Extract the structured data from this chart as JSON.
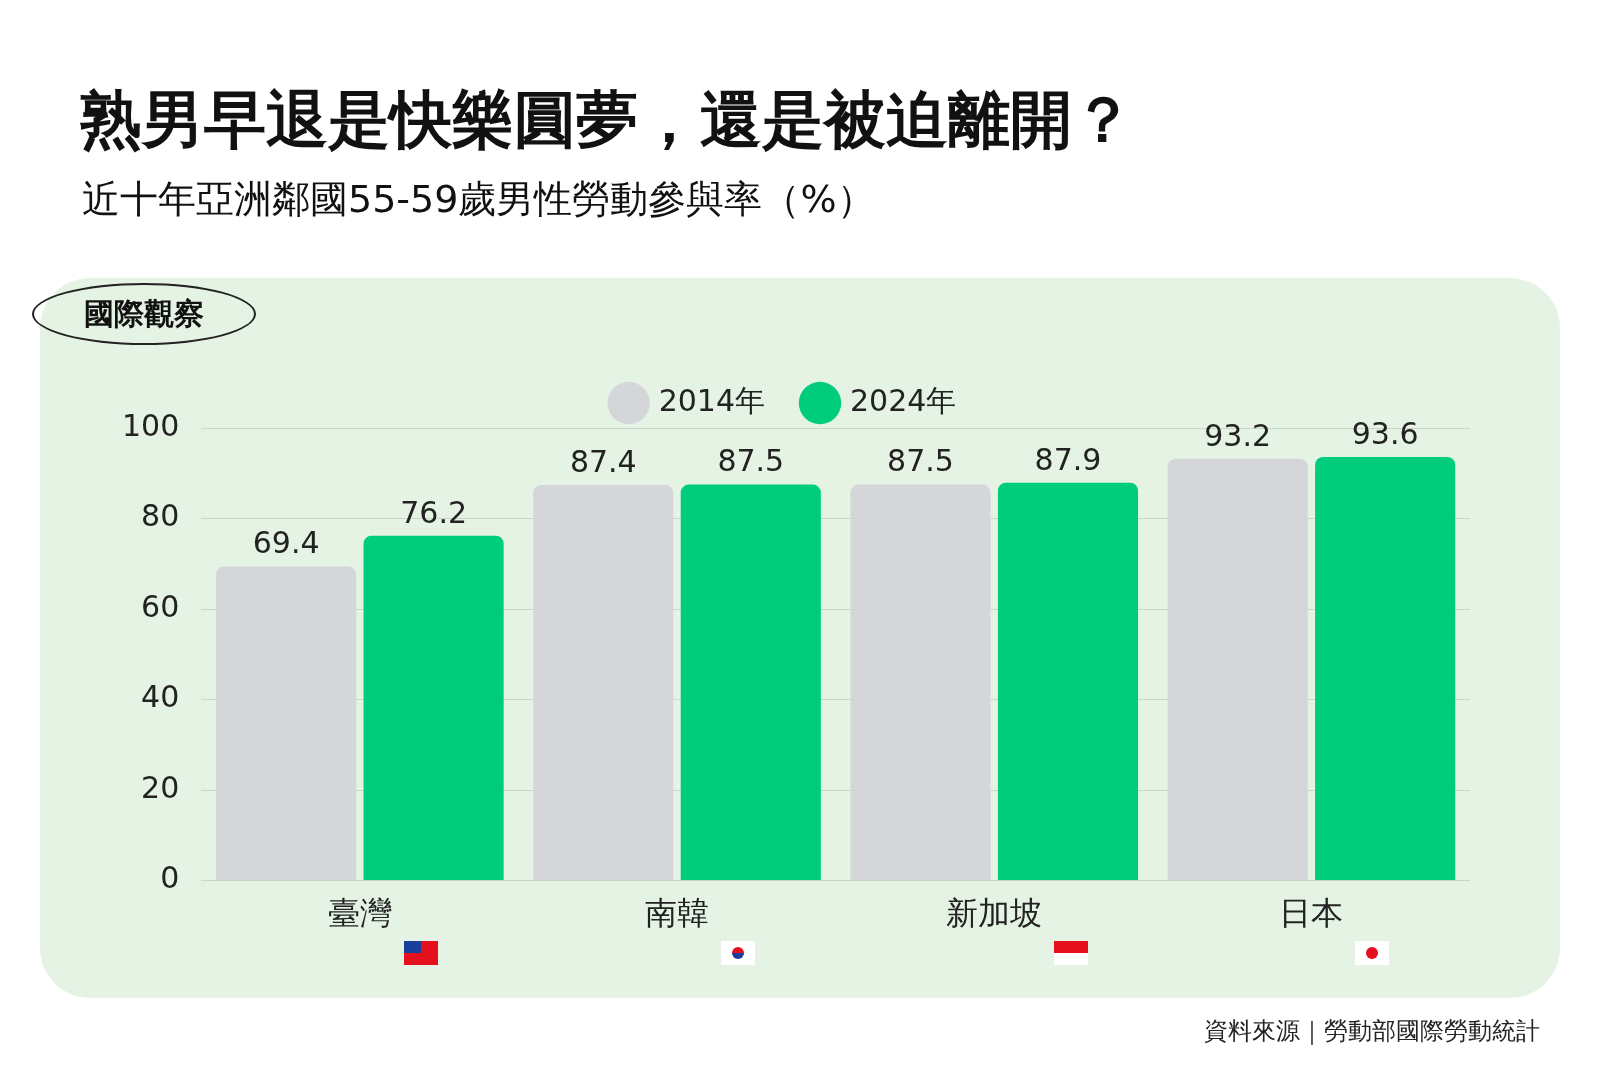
{
  "chart_data": {
    "type": "bar",
    "title": "熟男早退是快樂圓夢，還是被迫離開？",
    "subtitle": "近十年亞洲鄰國55-59歲男性勞動參與率（%）",
    "categories": [
      "臺灣",
      "南韓",
      "新加坡",
      "日本"
    ],
    "series": [
      {
        "name": "2014年",
        "color": "#d5d6d9",
        "values": [
          69.4,
          87.4,
          87.5,
          93.2
        ]
      },
      {
        "name": "2024年",
        "color": "#00cc7e",
        "values": [
          76.2,
          87.5,
          87.9,
          93.6
        ]
      }
    ],
    "ylim": [
      0,
      100
    ],
    "yticks": [
      0,
      20,
      40,
      60,
      80,
      100
    ],
    "grid": "y",
    "legend": "top",
    "data_labels": true,
    "annotations": [
      "國際觀察",
      "資料來源｜勞動部國際勞動統計"
    ]
  }
}
